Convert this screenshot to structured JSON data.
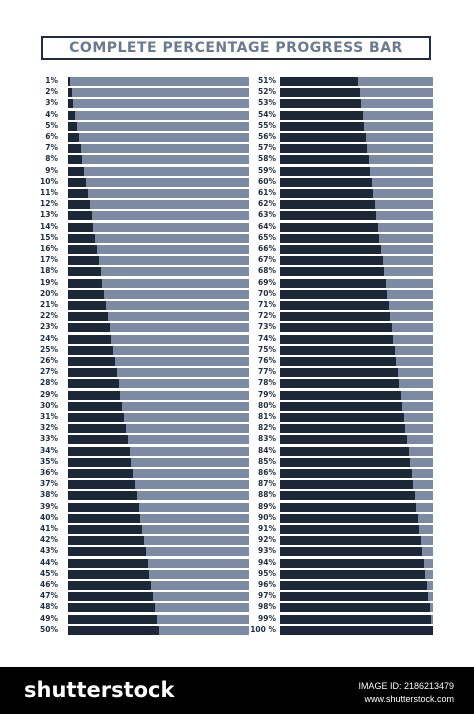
{
  "title": "COMPLETE PERCENTAGE PROGRESS BAR",
  "colors": {
    "fill": "#1c2738",
    "track": "#7c8ba3",
    "title_text": "#6b7a91",
    "border": "#1f2d40"
  },
  "left_column": [
    {
      "label": "1%",
      "value": 1
    },
    {
      "label": "2%",
      "value": 2
    },
    {
      "label": "3%",
      "value": 3
    },
    {
      "label": "4%",
      "value": 4
    },
    {
      "label": "5%",
      "value": 5
    },
    {
      "label": "6%",
      "value": 6
    },
    {
      "label": "7%",
      "value": 7
    },
    {
      "label": "8%",
      "value": 8
    },
    {
      "label": "9%",
      "value": 9
    },
    {
      "label": "10%",
      "value": 10
    },
    {
      "label": "11%",
      "value": 11
    },
    {
      "label": "12%",
      "value": 12
    },
    {
      "label": "13%",
      "value": 13
    },
    {
      "label": "14%",
      "value": 14
    },
    {
      "label": "15%",
      "value": 15
    },
    {
      "label": "16%",
      "value": 16
    },
    {
      "label": "17%",
      "value": 17
    },
    {
      "label": "18%",
      "value": 18
    },
    {
      "label": "19%",
      "value": 19
    },
    {
      "label": "20%",
      "value": 20
    },
    {
      "label": "21%",
      "value": 21
    },
    {
      "label": "22%",
      "value": 22
    },
    {
      "label": "23%",
      "value": 23
    },
    {
      "label": "24%",
      "value": 24
    },
    {
      "label": "25%",
      "value": 25
    },
    {
      "label": "26%",
      "value": 26
    },
    {
      "label": "27%",
      "value": 27
    },
    {
      "label": "28%",
      "value": 28
    },
    {
      "label": "29%",
      "value": 29
    },
    {
      "label": "30%",
      "value": 30
    },
    {
      "label": "31%",
      "value": 31
    },
    {
      "label": "32%",
      "value": 32
    },
    {
      "label": "33%",
      "value": 33
    },
    {
      "label": "34%",
      "value": 34
    },
    {
      "label": "35%",
      "value": 35
    },
    {
      "label": "36%",
      "value": 36
    },
    {
      "label": "37%",
      "value": 37
    },
    {
      "label": "38%",
      "value": 38
    },
    {
      "label": "39%",
      "value": 39
    },
    {
      "label": "40%",
      "value": 40
    },
    {
      "label": "41%",
      "value": 41
    },
    {
      "label": "42%",
      "value": 42
    },
    {
      "label": "43%",
      "value": 43
    },
    {
      "label": "44%",
      "value": 44
    },
    {
      "label": "45%",
      "value": 45
    },
    {
      "label": "46%",
      "value": 46
    },
    {
      "label": "47%",
      "value": 47
    },
    {
      "label": "48%",
      "value": 48
    },
    {
      "label": "49%",
      "value": 49
    },
    {
      "label": "50%",
      "value": 50
    }
  ],
  "right_column": [
    {
      "label": "51%",
      "value": 51
    },
    {
      "label": "52%",
      "value": 52
    },
    {
      "label": "53%",
      "value": 53
    },
    {
      "label": "54%",
      "value": 54
    },
    {
      "label": "55%",
      "value": 55
    },
    {
      "label": "56%",
      "value": 56
    },
    {
      "label": "57%",
      "value": 57
    },
    {
      "label": "58%",
      "value": 58
    },
    {
      "label": "59%",
      "value": 59
    },
    {
      "label": "60%",
      "value": 60
    },
    {
      "label": "61%",
      "value": 61
    },
    {
      "label": "62%",
      "value": 62
    },
    {
      "label": "63%",
      "value": 63
    },
    {
      "label": "64%",
      "value": 64
    },
    {
      "label": "65%",
      "value": 65
    },
    {
      "label": "66%",
      "value": 66
    },
    {
      "label": "67%",
      "value": 67
    },
    {
      "label": "68%",
      "value": 68
    },
    {
      "label": "69%",
      "value": 69
    },
    {
      "label": "70%",
      "value": 70
    },
    {
      "label": "71%",
      "value": 71
    },
    {
      "label": "72%",
      "value": 72
    },
    {
      "label": "73%",
      "value": 73
    },
    {
      "label": "74%",
      "value": 74
    },
    {
      "label": "75%",
      "value": 75
    },
    {
      "label": "76%",
      "value": 76
    },
    {
      "label": "77%",
      "value": 77
    },
    {
      "label": "78%",
      "value": 78
    },
    {
      "label": "79%",
      "value": 79
    },
    {
      "label": "80%",
      "value": 80
    },
    {
      "label": "81%",
      "value": 81
    },
    {
      "label": "82%",
      "value": 82
    },
    {
      "label": "83%",
      "value": 83
    },
    {
      "label": "84%",
      "value": 84
    },
    {
      "label": "85%",
      "value": 85
    },
    {
      "label": "86%",
      "value": 86
    },
    {
      "label": "87%",
      "value": 87
    },
    {
      "label": "88%",
      "value": 88
    },
    {
      "label": "89%",
      "value": 89
    },
    {
      "label": "90%",
      "value": 90
    },
    {
      "label": "91%",
      "value": 91
    },
    {
      "label": "92%",
      "value": 92
    },
    {
      "label": "93%",
      "value": 93
    },
    {
      "label": "94%",
      "value": 94
    },
    {
      "label": "95%",
      "value": 95
    },
    {
      "label": "96%",
      "value": 96
    },
    {
      "label": "97%",
      "value": 97
    },
    {
      "label": "98%",
      "value": 98
    },
    {
      "label": "99%",
      "value": 99
    },
    {
      "label": "100 %",
      "value": 100
    }
  ],
  "footer": {
    "logo": "shutterstock",
    "image_id": "IMAGE ID: 2186213479",
    "site": "www.shutterstock.com"
  }
}
